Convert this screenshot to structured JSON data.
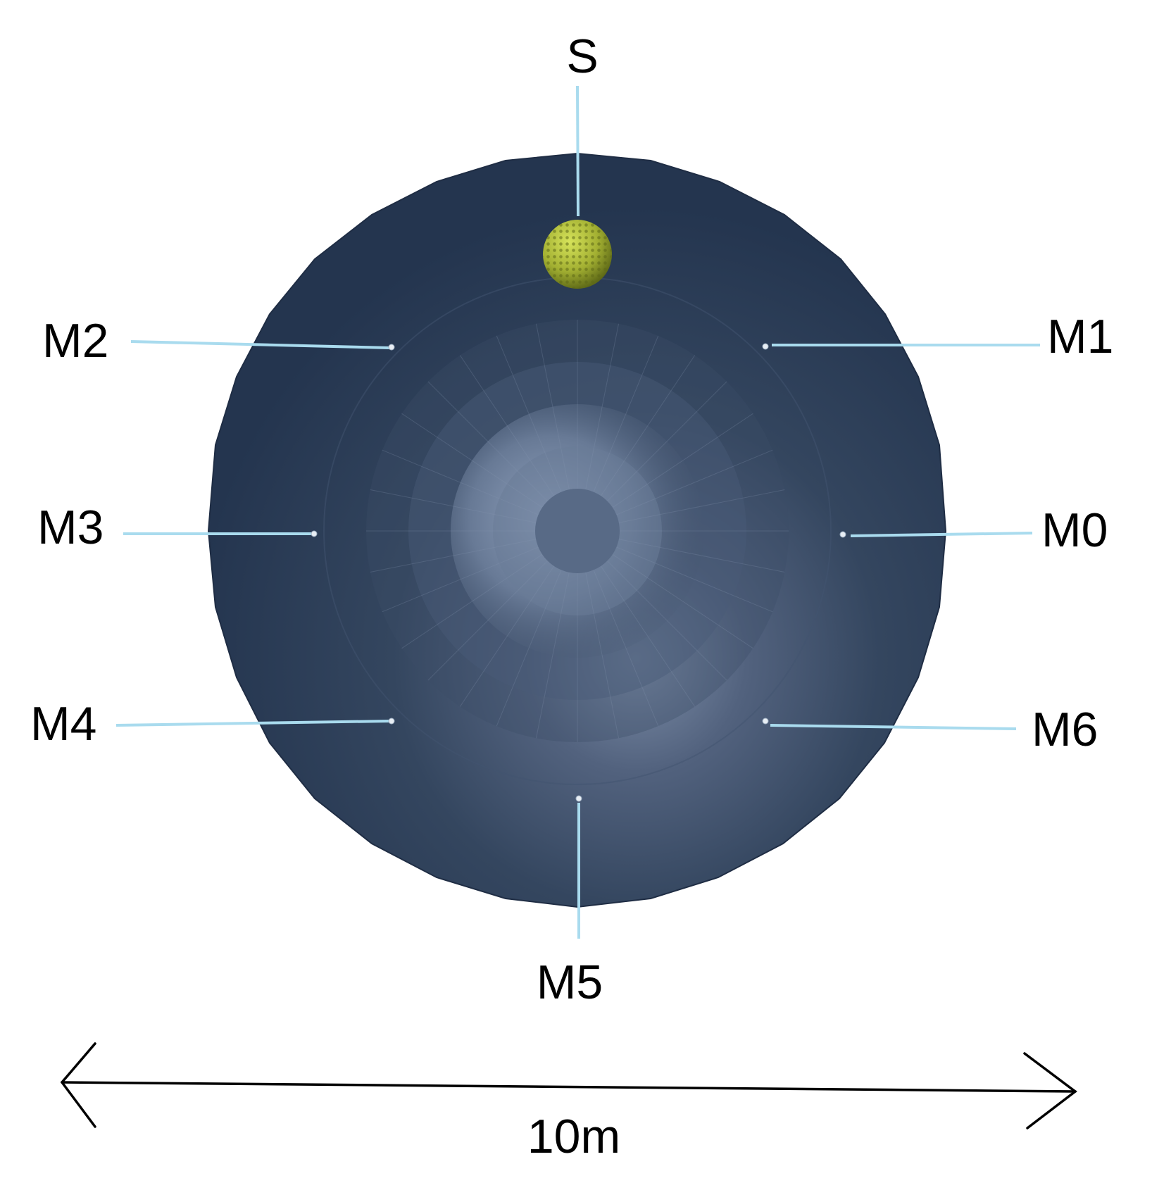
{
  "diagram": {
    "source": {
      "label": "S"
    },
    "microphones": [
      {
        "id": "m0",
        "label": "M0"
      },
      {
        "id": "m1",
        "label": "M1"
      },
      {
        "id": "m2",
        "label": "M2"
      },
      {
        "id": "m3",
        "label": "M3"
      },
      {
        "id": "m4",
        "label": "M4"
      },
      {
        "id": "m5",
        "label": "M5"
      },
      {
        "id": "m6",
        "label": "M6"
      }
    ],
    "scale": {
      "label": "10m"
    },
    "colors": {
      "dome_dark": "#24354f",
      "dome_light": "#7f90aa",
      "leader": "#a9dbee",
      "source_sphere": "#a3b032"
    }
  }
}
